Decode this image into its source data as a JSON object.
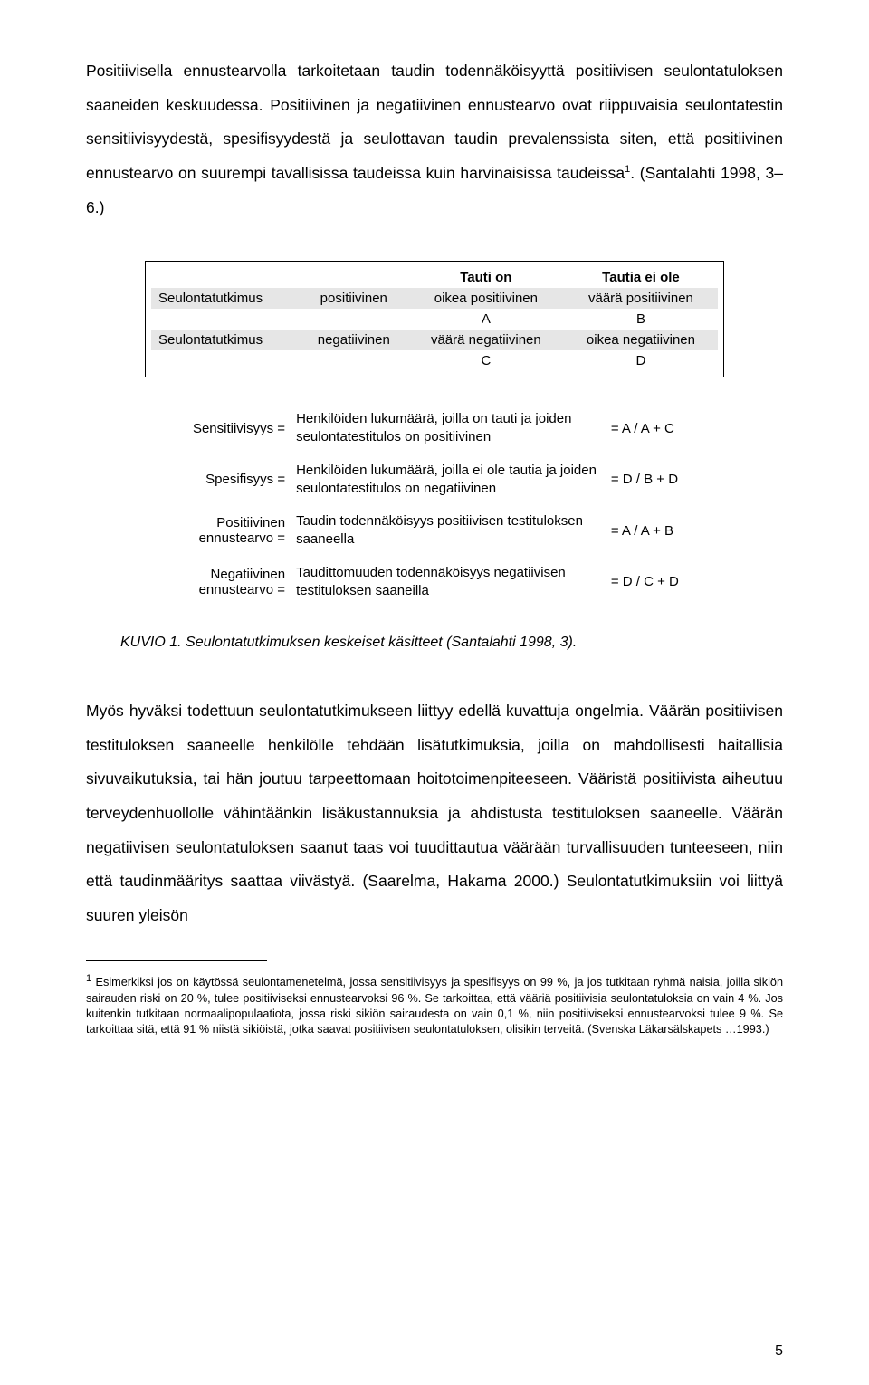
{
  "paragraph1": "Positiivisella ennustearvolla tarkoitetaan taudin todennäköisyyttä positiivisen seulontatuloksen saaneiden keskuudessa. Positiivinen ja negatiivinen ennustearvo ovat riippuvaisia seulontatestin sensitiivisyydestä, spesifisyydestä ja seulottavan taudin prevalenssista siten, että positiivinen ennustearvo on suurempi tavallisissa taudeissa kuin harvinaisissa taudeissa",
  "paragraph1_sup": "1",
  "paragraph1_tail": ". (Santalahti 1998, 3–6.)",
  "table1": {
    "col1": "Tauti on",
    "col2": "Tautia ei ole",
    "r1_label": "Seulontatutkimus",
    "r1_mid": "positiivinen",
    "r1_c1a": "oikea positiivinen",
    "r1_c1b": "A",
    "r1_c2a": "väärä positiivinen",
    "r1_c2b": "B",
    "r2_label": "Seulontatutkimus",
    "r2_mid": "negatiivinen",
    "r2_c1a": "väärä negatiivinen",
    "r2_c1b": "C",
    "r2_c2a": "oikea negatiivinen",
    "r2_c2b": "D"
  },
  "table2": {
    "r1_lbl": "Sensitiivisyys =",
    "r1_desc": "Henkilöiden lukumäärä, joilla on tauti ja joiden seulontatestitulos on positiivinen",
    "r1_f": "= A / A + C",
    "r2_lbl": "Spesifisyys =",
    "r2_desc": "Henkilöiden lukumäärä, joilla ei ole tautia ja joiden seulontatestitulos on negatiivinen",
    "r2_f": "= D / B + D",
    "r3_lbl_a": "Positiivinen",
    "r3_lbl_b": "ennustearvo =",
    "r3_desc": "Taudin todennäköisyys positiivisen testituloksen saaneella",
    "r3_f": "= A / A + B",
    "r4_lbl_a": "Negatiivinen",
    "r4_lbl_b": "ennustearvo =",
    "r4_desc": "Taudittomuuden todennäköisyys negatiivisen testituloksen saaneilla",
    "r4_f": "= D / C + D"
  },
  "caption": "KUVIO 1. Seulontatutkimuksen keskeiset käsitteet (Santalahti 1998, 3).",
  "paragraph2": "Myös hyväksi todettuun seulontatutkimukseen liittyy edellä kuvattuja ongelmia. Väärän positiivisen testituloksen saaneelle henkilölle tehdään lisätutkimuksia, joilla on mahdollisesti haitallisia sivuvaikutuksia, tai hän joutuu tarpeettomaan hoitotoimenpiteeseen. Vääristä positiivista aiheutuu terveydenhuollolle vähintäänkin lisäkustannuksia ja ahdistusta testituloksen saaneelle. Väärän negatiivisen seulontatuloksen saanut taas voi tuudittautua väärään turvallisuuden tunteeseen, niin että taudinmääritys saattaa viivästyä. (Saarelma, Hakama 2000.) Seulontatutkimuksiin voi liittyä suuren yleisön",
  "footnote_sup": "1",
  "footnote": " Esimerkiksi jos on käytössä seulontamenetelmä, jossa sensitiivisyys ja spesifisyys on 99 %, ja jos tutkitaan ryhmä naisia, joilla sikiön sairauden riski on 20 %, tulee positiiviseksi ennustearvoksi 96 %. Se tarkoittaa, että vääriä positiivisia seulontatuloksia on vain 4 %. Jos kuitenkin tutkitaan normaalipopulaatiota, jossa riski sikiön sairaudesta on vain 0,1 %, niin positiiviseksi ennustearvoksi tulee 9 %. Se tarkoittaa sitä, että 91 % niistä sikiöistä, jotka saavat positiivisen seulontatuloksen, olisikin terveitä. (Svenska Läkarsälskapets …1993.)",
  "page_number": "5"
}
